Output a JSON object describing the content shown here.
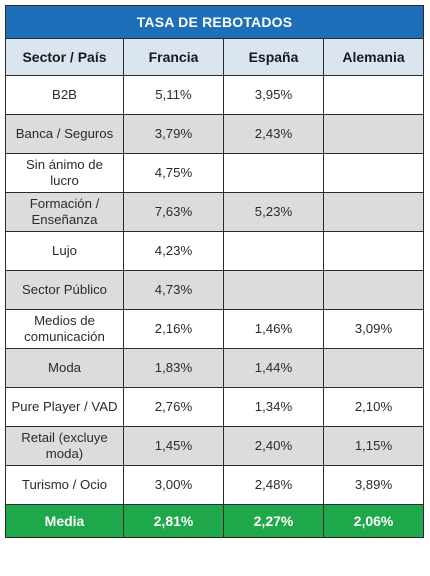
{
  "table": {
    "title": "TASA DE REBOTADOS",
    "headers": [
      "Sector / País",
      "Francia",
      "España",
      "Alemania"
    ],
    "rows": [
      [
        "B2B",
        "5,11%",
        "3,95%",
        ""
      ],
      [
        "Banca / Seguros",
        "3,79%",
        "2,43%",
        ""
      ],
      [
        "Sin ánimo de lucro",
        "4,75%",
        "",
        ""
      ],
      [
        "Formación / Enseñanza",
        "7,63%",
        "5,23%",
        ""
      ],
      [
        "Lujo",
        "4,23%",
        "",
        ""
      ],
      [
        "Sector Público",
        "4,73%",
        "",
        ""
      ],
      [
        "Medios de comunicación",
        "2,16%",
        "1,46%",
        "3,09%"
      ],
      [
        "Moda",
        "1,83%",
        "1,44%",
        ""
      ],
      [
        "Pure Player / VAD",
        "2,76%",
        "1,34%",
        "2,10%"
      ],
      [
        "Retail (excluye moda)",
        "1,45%",
        "2,40%",
        "1,15%"
      ],
      [
        "Turismo / Ocio",
        "3,00%",
        "2,48%",
        "3,89%"
      ]
    ],
    "total": [
      "Media",
      "2,81%",
      "2,27%",
      "2,06%"
    ]
  },
  "colors": {
    "title_bg": "#1c6fb8",
    "header_bg": "#dbe4f1",
    "stripe_bg": "#dcdcdc",
    "total_bg": "#1ea849"
  }
}
